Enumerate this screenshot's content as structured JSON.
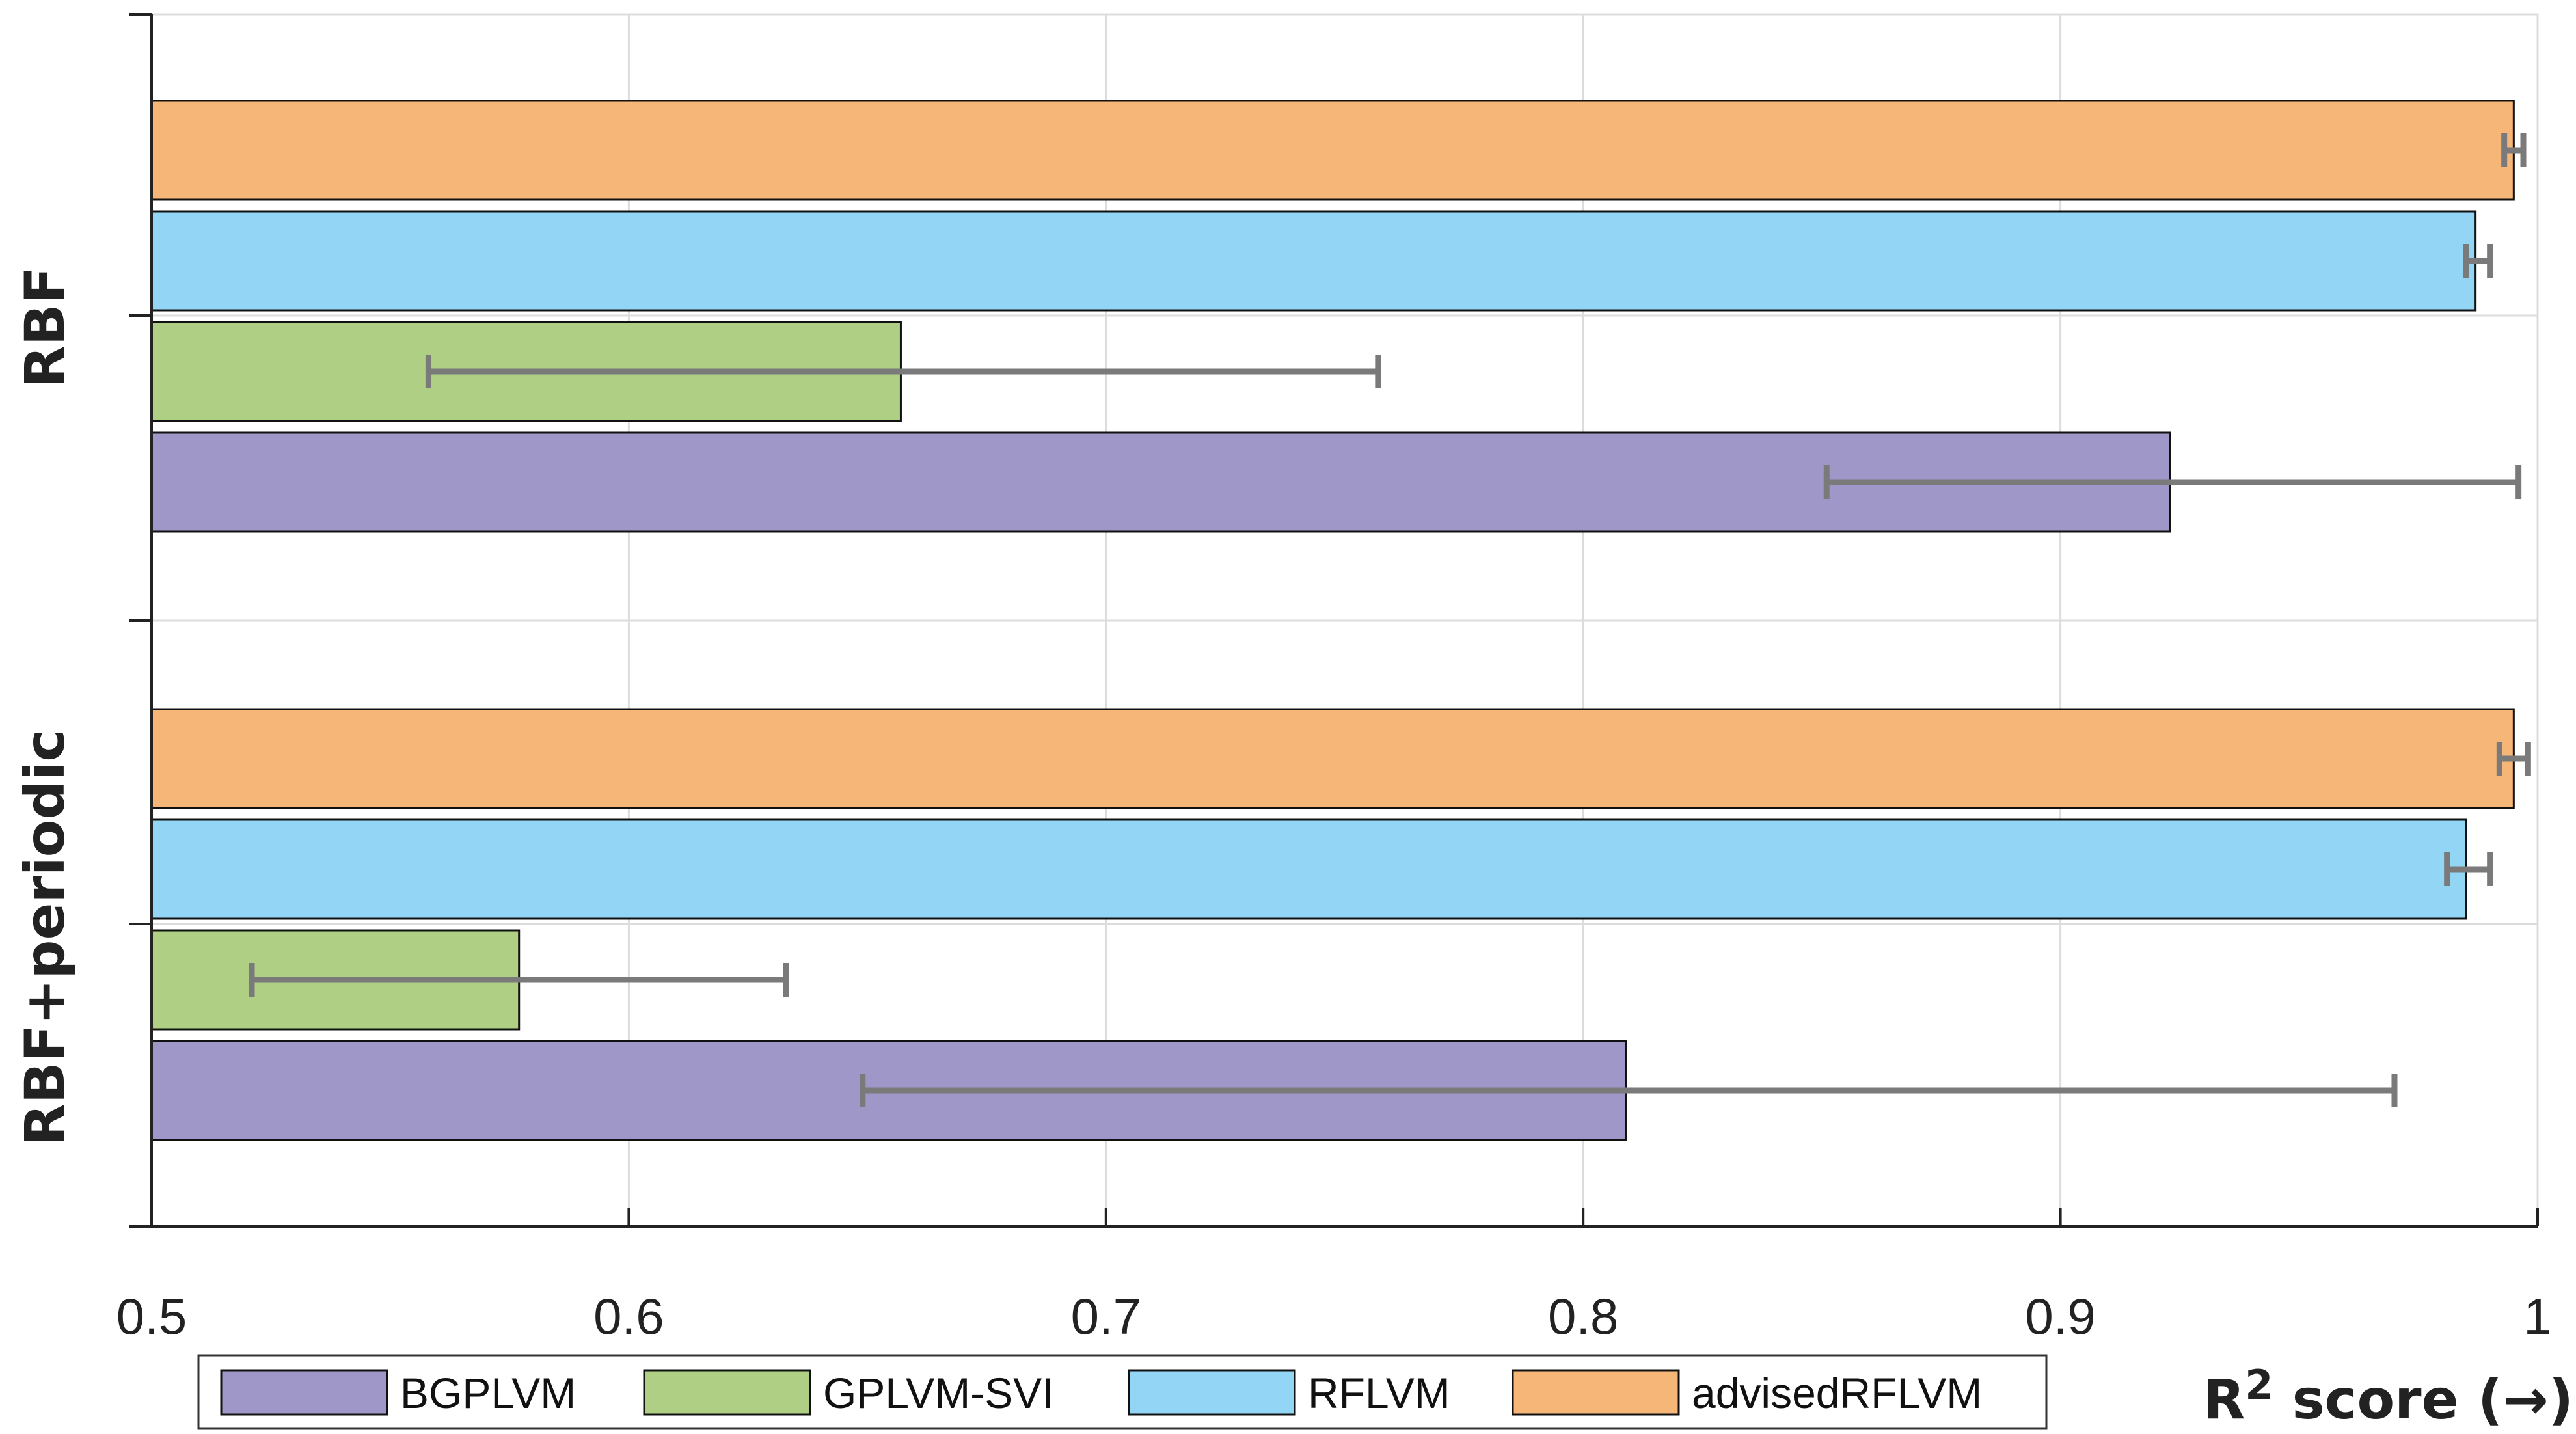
{
  "chart_data": {
    "type": "bar",
    "orientation": "horizontal",
    "groups": [
      "RBF",
      "RBF+periodic"
    ],
    "series": [
      {
        "name": "BGPLVM",
        "color": "#9e97c8",
        "values": [
          0.923,
          0.809
        ],
        "err_low": [
          0.851,
          0.649
        ],
        "err_high": [
          0.996,
          0.97
        ]
      },
      {
        "name": "GPLVM-SVI",
        "color": "#aecf84",
        "values": [
          0.657,
          0.577
        ],
        "err_low": [
          0.558,
          0.521
        ],
        "err_high": [
          0.757,
          0.633
        ]
      },
      {
        "name": "RFLVM",
        "color": "#93d5f5",
        "values": [
          0.987,
          0.985
        ],
        "err_low": [
          0.985,
          0.981
        ],
        "err_high": [
          0.99,
          0.99
        ]
      },
      {
        "name": "advisedRFLVM",
        "color": "#f5b678",
        "values": [
          0.995,
          0.995
        ],
        "err_low": [
          0.993,
          0.992
        ],
        "err_high": [
          0.997,
          0.998
        ]
      }
    ],
    "xlim": [
      0.5,
      1.0
    ],
    "xticks": [
      0.5,
      0.6,
      0.7,
      0.8,
      0.9,
      1.0
    ],
    "xtick_labels": [
      "0.5",
      "0.6",
      "0.7",
      "0.8",
      "0.9",
      "1"
    ],
    "xlabel_main": "R",
    "xlabel_sup": "2",
    "xlabel_suffix": " score (→)",
    "grid": true,
    "legend_position": "bottom"
  }
}
